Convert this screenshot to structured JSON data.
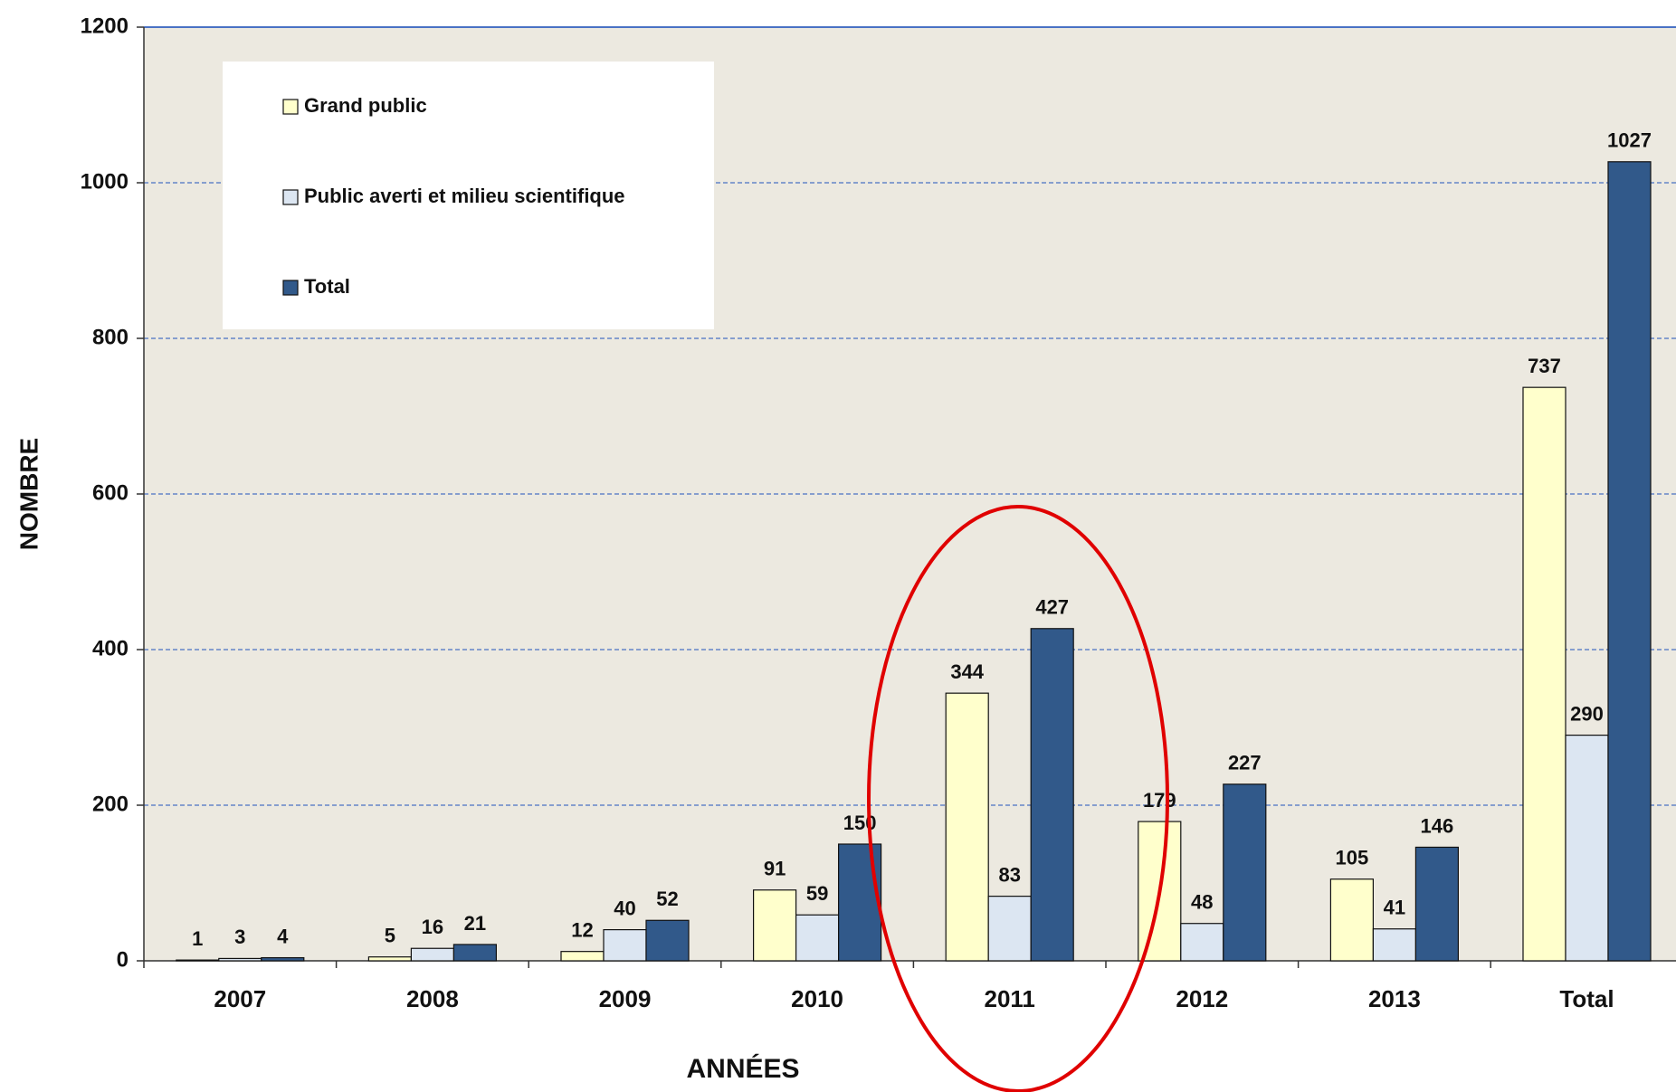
{
  "chart_data": {
    "type": "bar",
    "x_label": "ANNÉES",
    "y_label": "NOMBRE",
    "categories": [
      "2007",
      "2008",
      "2009",
      "2010",
      "2011",
      "2012",
      "2013",
      "Total"
    ],
    "series": [
      {
        "name": "Grand public",
        "color": "#ffffcc",
        "values": [
          1,
          5,
          12,
          91,
          344,
          179,
          105,
          737
        ]
      },
      {
        "name": "Public averti et milieu scientifique",
        "color": "#dce6f2",
        "values": [
          3,
          16,
          40,
          59,
          83,
          48,
          41,
          290
        ]
      },
      {
        "name": "Total",
        "color": "#31598a",
        "values": [
          4,
          21,
          52,
          150,
          427,
          227,
          146,
          1027
        ]
      }
    ],
    "ylim": [
      0,
      1200
    ],
    "yticks": [
      0,
      200,
      400,
      600,
      800,
      1000,
      1200
    ],
    "grid": true
  }
}
